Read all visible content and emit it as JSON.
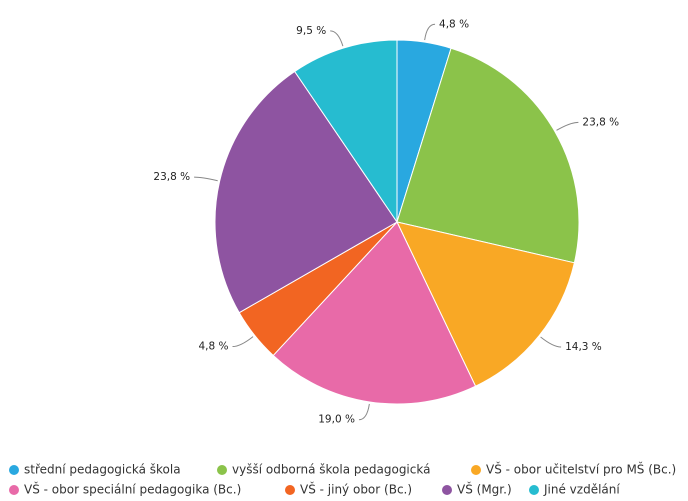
{
  "chart_data": {
    "type": "pie",
    "categories": [
      "střední pedagogická škola",
      "vyšší odborná škola pedagogická",
      "VŠ - obor učitelství pro MŠ (Bc.)",
      "VŠ - obor speciální pedagogika (Bc.)",
      "VŠ - jiný obor (Bc.)",
      "VŠ (Mgr.)",
      "Jiné vzdělání"
    ],
    "values": [
      4.8,
      23.8,
      14.3,
      19.0,
      4.8,
      23.8,
      9.5
    ],
    "value_labels": [
      "4,8 %",
      "23,8 %",
      "14,3 %",
      "19,0 %",
      "4,8 %",
      "23,8 %",
      "9,5 %"
    ],
    "colors": [
      "#29a8e0",
      "#8bc34a",
      "#f9a825",
      "#e86aa8",
      "#f26522",
      "#8e54a1",
      "#26bcd0"
    ]
  }
}
